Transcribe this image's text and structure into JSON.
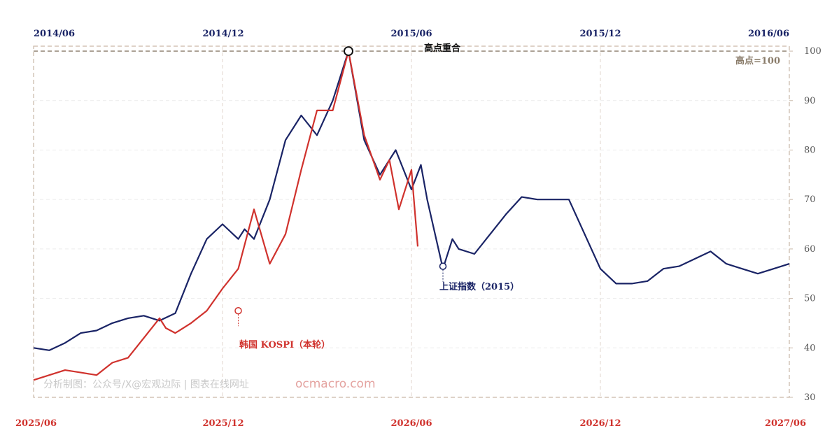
{
  "chart_data": {
    "type": "line",
    "top_axis": {
      "ticks": [
        "2014/06",
        "2014/12",
        "2015/06",
        "2015/12",
        "2016/06"
      ]
    },
    "bottom_axis": {
      "ticks": [
        "2025/06",
        "2025/12",
        "2026/06",
        "2026/12",
        "2027/06"
      ]
    },
    "y_axis": {
      "ticks": [
        "30",
        "40",
        "50",
        "60",
        "70",
        "80",
        "90",
        "100"
      ],
      "ylim": [
        30,
        101
      ],
      "position": "right"
    },
    "grid": true,
    "peak_annotation": "高点重合",
    "reference_line": {
      "value": 100,
      "label": "高点=100"
    },
    "series": [
      {
        "name": "上证指数（2015）",
        "color": "#1a2466",
        "x": [
          0,
          0.5,
          1,
          1.5,
          2,
          2.5,
          3,
          3.5,
          4,
          4.5,
          5,
          5.5,
          6,
          6.5,
          6.7,
          7,
          7.5,
          8,
          8.5,
          9,
          9.5,
          10,
          10.5,
          11,
          11.5,
          12,
          12.3,
          12.5,
          13,
          13.3,
          13.5,
          14,
          14.5,
          15,
          15.5,
          16,
          16.5,
          17,
          17.5,
          18,
          18.5,
          19,
          19.5,
          20,
          20.5,
          21,
          21.5,
          22,
          22.5,
          23,
          23.5,
          24
        ],
        "values": [
          40,
          39.5,
          41,
          43,
          43.5,
          45,
          46,
          46.5,
          45.5,
          47,
          55,
          62,
          65,
          62,
          64,
          62,
          70,
          82,
          87,
          83,
          90,
          100,
          82,
          75,
          80,
          72,
          77,
          70,
          56,
          62,
          60,
          59,
          63,
          67,
          70.5,
          70,
          70,
          70,
          63,
          56,
          53,
          53,
          53.5,
          56,
          56.5,
          58,
          59.5,
          57,
          56,
          55,
          56,
          57
        ]
      },
      {
        "name": "韩国 KOSPI（本轮）",
        "color": "#d0322d",
        "x": [
          0,
          0.5,
          1,
          1.5,
          2,
          2.5,
          3,
          3.5,
          4,
          4.2,
          4.5,
          5,
          5.5,
          6,
          6.5,
          7,
          7.5,
          8,
          8.5,
          9,
          9.5,
          10,
          10.5,
          11,
          11.3,
          11.6,
          12,
          12.2
        ],
        "values": [
          33.5,
          34.5,
          35.5,
          35,
          34.5,
          37,
          38,
          42,
          46,
          44,
          43,
          45,
          47.5,
          52,
          56,
          68,
          57,
          63,
          76,
          88,
          88,
          100,
          83,
          74,
          78,
          68,
          76,
          60.5
        ]
      }
    ],
    "markers": [
      {
        "series": 0,
        "x": 13,
        "value": 56.5,
        "label": "上证指数（2015）"
      },
      {
        "series": 1,
        "x": 6.5,
        "value": 47.5,
        "label": "韩国 KOSPI（本轮）"
      },
      {
        "series": 0,
        "x": 10,
        "value": 100,
        "label": "高点重合"
      }
    ]
  },
  "watermark": {
    "text": "分析制图：公众号/X@宏观边际 | 图表在线网址",
    "url": "ocmacro.com"
  },
  "colors": {
    "navy": "#1a2466",
    "red": "#d0322d",
    "frame": "#c9b8a8",
    "grid": "#e0e0e0"
  }
}
